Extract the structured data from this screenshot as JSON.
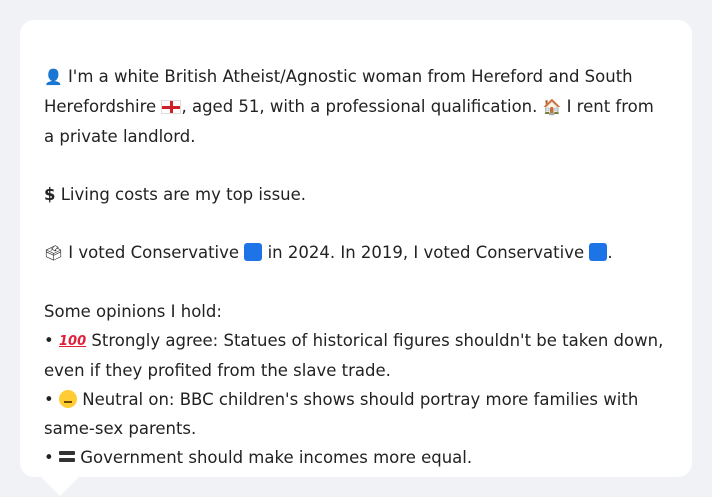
{
  "profile": {
    "line1_icon": "person-icon",
    "line1_a": "I'm a white British Atheist/Agnostic woman from Hereford and South Herefordshire",
    "line1_b": ", aged 51, with a professional qualification.",
    "line1_c": "I rent from a private landlord.",
    "issue": "Living costs are my top issue.",
    "vote_a": "I voted Conservative",
    "vote_b": "in 2024. In 2019, I voted Conservative",
    "vote_c": ".",
    "opinions_header": "Some opinions I hold:",
    "opinions": [
      {
        "prefix": "Strongly agree: Statues of historical figures shouldn't be taken down, even if they profited from the slave trade."
      },
      {
        "prefix": "Neutral on: BBC children's shows should portray more families with same-sex parents."
      },
      {
        "prefix": "Government should make incomes more equal."
      }
    ],
    "bullet": "•",
    "hundred": "100",
    "dollar": "$"
  }
}
